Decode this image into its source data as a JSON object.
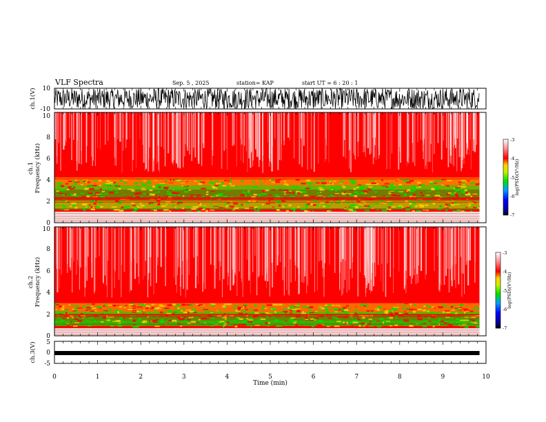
{
  "header": {
    "title": "VLF Spectra",
    "date": "Sep. 5  , 2025",
    "station": "station= KAP",
    "start": "start  UT  =   6  : 20 : 1"
  },
  "chart_data": [
    {
      "type": "line",
      "name": "ch.1 waveform",
      "ylabel": "ch.1(V)",
      "ylim": [
        -10,
        10
      ],
      "yticks": [
        "10",
        "-10"
      ],
      "xlim": [
        0,
        10
      ],
      "data_extent_min": 9.85
    },
    {
      "type": "heatmap",
      "name": "ch.1 spectrogram",
      "ylabel": [
        "ch.1",
        "Frequency  (kHz)"
      ],
      "ylim": [
        0,
        10
      ],
      "yticks": [
        "0",
        "2",
        "4",
        "6",
        "8",
        "10"
      ],
      "xlim": [
        0,
        10
      ],
      "data_extent_min": 9.85,
      "colorbar": {
        "label": "log(PSD)(V²/Hz)",
        "range": [
          -7,
          -3
        ],
        "ticks": [
          "-3",
          "-4",
          "-5",
          "-6",
          "-7"
        ]
      }
    },
    {
      "type": "heatmap",
      "name": "ch.2 spectrogram",
      "ylabel": [
        "ch.2",
        "Frequency  (kHz)"
      ],
      "ylim": [
        0,
        10
      ],
      "yticks": [
        "0",
        "2",
        "4",
        "6",
        "8",
        "10"
      ],
      "xlim": [
        0,
        10
      ],
      "data_extent_min": 9.85,
      "colorbar": {
        "label": "log(PSD)(V²/Hz)",
        "range": [
          -7,
          -3
        ],
        "ticks": [
          "-3",
          "-4",
          "-5",
          "-6",
          "-7"
        ]
      }
    },
    {
      "type": "line",
      "name": "ch.3 waveform",
      "ylabel": "ch.3(V)",
      "ylim": [
        -5,
        5
      ],
      "yticks": [
        "5",
        "0",
        "-5"
      ],
      "xlim": [
        0,
        10
      ],
      "data_extent_min": 9.85,
      "level": -0.3
    }
  ],
  "xaxis": {
    "label": "Time  (min)",
    "ticks": [
      "0",
      "1",
      "2",
      "3",
      "4",
      "5",
      "6",
      "7",
      "8",
      "9",
      "10"
    ]
  },
  "colors": {
    "high": "#ff0000",
    "mid": "#ffd000",
    "low": "#00e000"
  }
}
